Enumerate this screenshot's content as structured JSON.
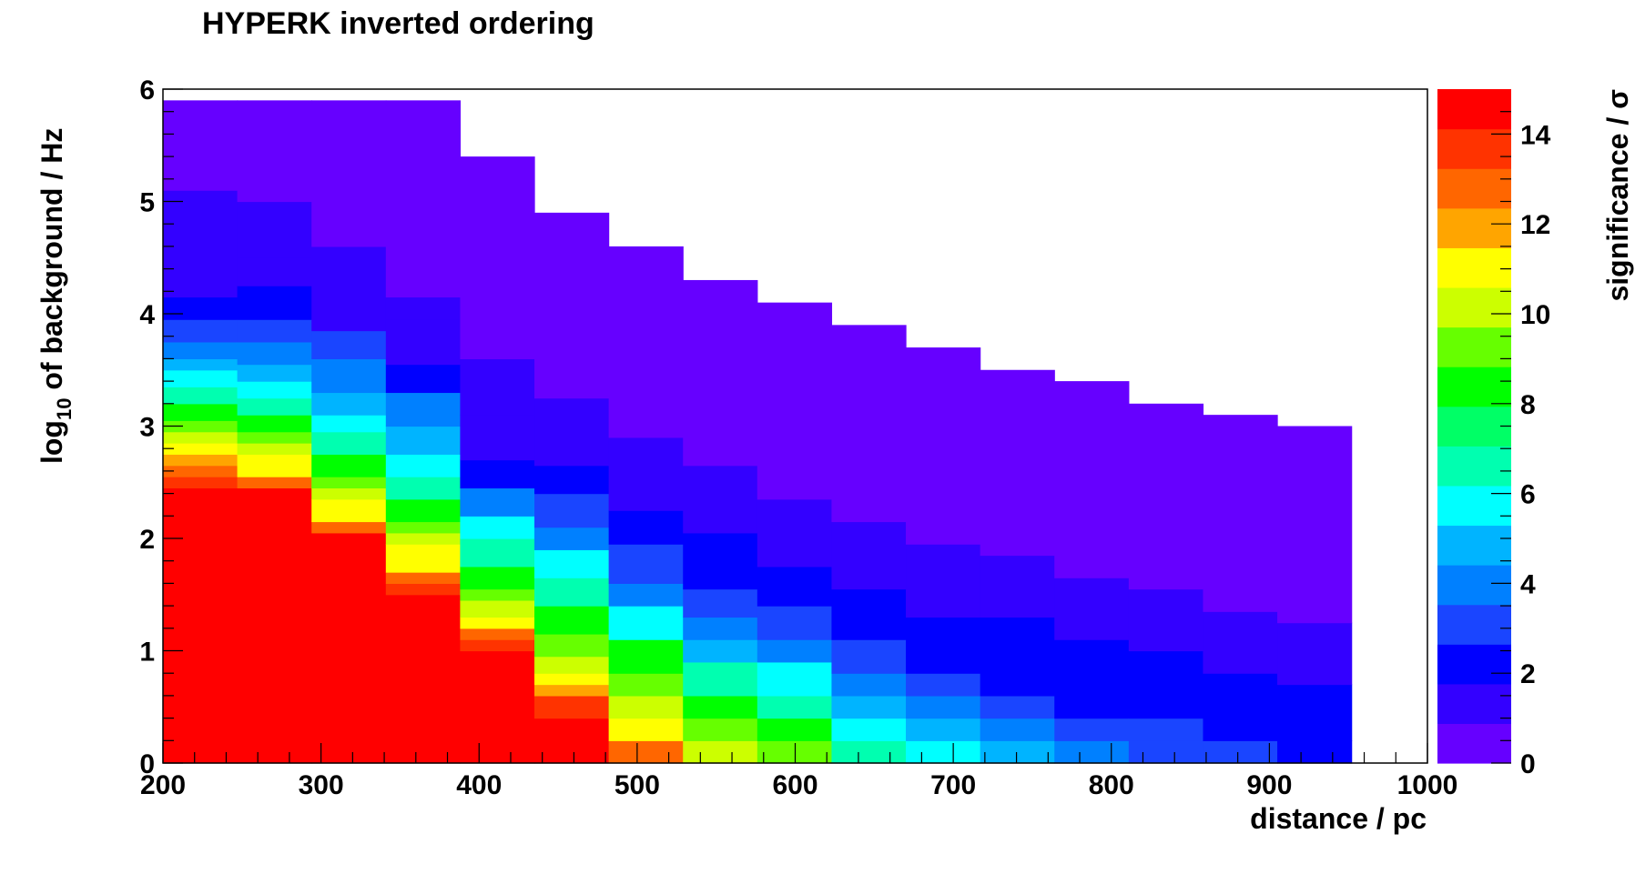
{
  "chart_data": {
    "type": "heatmap",
    "title": "HYPERK inverted ordering",
    "xlabel": "distance / pc",
    "ylabel_main": "log",
    "ylabel_sub": "10",
    "ylabel_rest": " of background / Hz",
    "zlabel": "significance / σ",
    "xlim": [
      200,
      1000
    ],
    "ylim": [
      0,
      6
    ],
    "zlim": [
      0,
      15
    ],
    "x_ticks": [
      "200",
      "300",
      "400",
      "500",
      "600",
      "700",
      "800",
      "900",
      "1000"
    ],
    "y_ticks": [
      "0",
      "1",
      "2",
      "3",
      "4",
      "5",
      "6"
    ],
    "z_ticks": [
      "0",
      "2",
      "4",
      "6",
      "8",
      "10",
      "12",
      "14"
    ],
    "z_tick_values": [
      0,
      2,
      4,
      6,
      8,
      10,
      12,
      14
    ],
    "grid": false,
    "log_scale_y": true,
    "x_bin_edges": [
      200,
      247,
      294,
      341,
      388,
      435,
      482,
      529,
      576,
      623,
      670,
      717,
      764,
      811,
      858,
      905,
      952
    ],
    "y_step": 0.2,
    "colors": [
      "#6600ff",
      "#3300ff",
      "#0000ff",
      "#1a45ff",
      "#0080ff",
      "#00b4ff",
      "#00ffff",
      "#00ffb0",
      "#00ff66",
      "#00ff00",
      "#66ff00",
      "#ccff00",
      "#ffff00",
      "#ffa500",
      "#ff6600",
      "#ff3300",
      "#ff0000"
    ],
    "columns": [
      {
        "top": 5.9,
        "red": 2.6,
        "levels": [
          [
            2.45,
            2.55,
            14
          ],
          [
            2.55,
            2.65,
            13
          ],
          [
            2.65,
            2.75,
            12
          ],
          [
            2.75,
            2.85,
            11
          ],
          [
            2.85,
            2.95,
            10
          ],
          [
            2.95,
            3.05,
            9
          ],
          [
            3.05,
            3.2,
            8
          ],
          [
            3.2,
            3.35,
            7
          ],
          [
            3.35,
            3.5,
            6
          ],
          [
            3.5,
            3.6,
            5
          ],
          [
            3.6,
            3.75,
            4
          ],
          [
            3.75,
            3.95,
            3
          ],
          [
            3.95,
            4.15,
            2.5
          ],
          [
            4.15,
            4.55,
            1.5
          ],
          [
            4.55,
            5.1,
            1
          ],
          [
            5.1,
            5.9,
            0.3
          ]
        ]
      },
      {
        "top": 5.9,
        "red": 2.45,
        "levels": [
          [
            2.45,
            2.55,
            13
          ],
          [
            2.55,
            2.75,
            11
          ],
          [
            2.75,
            2.85,
            10
          ],
          [
            2.85,
            2.95,
            9
          ],
          [
            2.95,
            3.1,
            8
          ],
          [
            3.1,
            3.25,
            7
          ],
          [
            3.25,
            3.4,
            6
          ],
          [
            3.4,
            3.55,
            5
          ],
          [
            3.55,
            3.75,
            4
          ],
          [
            3.75,
            3.95,
            3
          ],
          [
            3.95,
            4.25,
            2.5
          ],
          [
            4.25,
            4.5,
            1.5
          ],
          [
            4.5,
            5.0,
            1
          ],
          [
            5.0,
            5.9,
            0.3
          ]
        ]
      },
      {
        "top": 5.9,
        "red": 2.05,
        "levels": [
          [
            2.05,
            2.15,
            13
          ],
          [
            2.15,
            2.35,
            11
          ],
          [
            2.35,
            2.45,
            10
          ],
          [
            2.45,
            2.55,
            9
          ],
          [
            2.55,
            2.75,
            8
          ],
          [
            2.75,
            2.95,
            7
          ],
          [
            2.95,
            3.1,
            6
          ],
          [
            3.1,
            3.3,
            5
          ],
          [
            3.3,
            3.6,
            4
          ],
          [
            3.6,
            3.85,
            3
          ],
          [
            3.85,
            4.25,
            1.5
          ],
          [
            4.25,
            4.6,
            1
          ],
          [
            4.6,
            5.9,
            0.3
          ]
        ]
      },
      {
        "top": 5.9,
        "red": 1.5,
        "levels": [
          [
            1.5,
            1.6,
            14
          ],
          [
            1.6,
            1.7,
            13
          ],
          [
            1.7,
            1.95,
            11
          ],
          [
            1.95,
            2.05,
            10
          ],
          [
            2.05,
            2.15,
            9
          ],
          [
            2.15,
            2.35,
            8
          ],
          [
            2.35,
            2.55,
            7
          ],
          [
            2.55,
            2.75,
            6
          ],
          [
            2.75,
            3.0,
            5
          ],
          [
            3.0,
            3.3,
            4
          ],
          [
            3.3,
            3.55,
            2.5
          ],
          [
            3.55,
            3.95,
            1.5
          ],
          [
            3.95,
            4.15,
            1
          ],
          [
            4.15,
            5.9,
            0.3
          ]
        ]
      },
      {
        "top": 5.4,
        "red": 1.0,
        "levels": [
          [
            1.0,
            1.1,
            14
          ],
          [
            1.1,
            1.2,
            13
          ],
          [
            1.2,
            1.3,
            11
          ],
          [
            1.3,
            1.45,
            10
          ],
          [
            1.45,
            1.55,
            9
          ],
          [
            1.55,
            1.75,
            8
          ],
          [
            1.75,
            2.0,
            7
          ],
          [
            2.0,
            2.2,
            6
          ],
          [
            2.2,
            2.45,
            4
          ],
          [
            2.45,
            2.7,
            2.5
          ],
          [
            2.7,
            3.1,
            1.5
          ],
          [
            3.1,
            3.6,
            1
          ],
          [
            3.6,
            5.4,
            0.3
          ]
        ]
      },
      {
        "top": 4.9,
        "red": 0.4,
        "levels": [
          [
            0.4,
            0.6,
            13.5
          ],
          [
            0.6,
            0.7,
            12
          ],
          [
            0.7,
            0.8,
            11
          ],
          [
            0.8,
            0.95,
            10
          ],
          [
            0.95,
            1.15,
            9
          ],
          [
            1.15,
            1.4,
            8
          ],
          [
            1.4,
            1.65,
            7
          ],
          [
            1.65,
            1.9,
            6
          ],
          [
            1.9,
            2.1,
            4
          ],
          [
            2.1,
            2.4,
            3
          ],
          [
            2.4,
            2.65,
            2
          ],
          [
            2.65,
            3.25,
            1
          ],
          [
            3.25,
            4.9,
            0.3
          ]
        ]
      },
      {
        "top": 4.6,
        "red": 0.0,
        "levels": [
          [
            0.0,
            0.2,
            12.5
          ],
          [
            0.2,
            0.4,
            11
          ],
          [
            0.4,
            0.6,
            10
          ],
          [
            0.6,
            0.8,
            9
          ],
          [
            0.8,
            1.1,
            8
          ],
          [
            1.1,
            1.4,
            6
          ],
          [
            1.4,
            1.6,
            4
          ],
          [
            1.6,
            1.95,
            3
          ],
          [
            1.95,
            2.25,
            2
          ],
          [
            2.25,
            2.9,
            1
          ],
          [
            2.9,
            4.6,
            0.3
          ]
        ]
      },
      {
        "top": 4.3,
        "red": 0.0,
        "levels": [
          [
            0.0,
            0.2,
            10
          ],
          [
            0.2,
            0.4,
            9
          ],
          [
            0.4,
            0.6,
            8
          ],
          [
            0.6,
            0.9,
            7
          ],
          [
            0.9,
            1.1,
            5
          ],
          [
            1.1,
            1.3,
            4
          ],
          [
            1.3,
            1.55,
            3
          ],
          [
            1.55,
            2.05,
            2
          ],
          [
            2.05,
            2.65,
            1
          ],
          [
            2.65,
            4.3,
            0.3
          ]
        ]
      },
      {
        "top": 4.1,
        "red": 0.0,
        "levels": [
          [
            0.0,
            0.2,
            9
          ],
          [
            0.2,
            0.4,
            8
          ],
          [
            0.4,
            0.6,
            7
          ],
          [
            0.6,
            0.9,
            6
          ],
          [
            0.9,
            1.1,
            4
          ],
          [
            1.1,
            1.4,
            3
          ],
          [
            1.4,
            1.75,
            2
          ],
          [
            1.75,
            2.35,
            1
          ],
          [
            2.35,
            4.1,
            0.3
          ]
        ]
      },
      {
        "top": 3.9,
        "red": 0.0,
        "levels": [
          [
            0.0,
            0.2,
            7
          ],
          [
            0.2,
            0.4,
            6
          ],
          [
            0.4,
            0.6,
            5
          ],
          [
            0.6,
            0.8,
            4
          ],
          [
            0.8,
            1.1,
            3
          ],
          [
            1.1,
            1.55,
            2
          ],
          [
            1.55,
            2.15,
            1
          ],
          [
            2.15,
            3.9,
            0.3
          ]
        ]
      },
      {
        "top": 3.7,
        "red": 0.0,
        "levels": [
          [
            0.0,
            0.2,
            6
          ],
          [
            0.2,
            0.4,
            5
          ],
          [
            0.4,
            0.6,
            4
          ],
          [
            0.6,
            0.8,
            3
          ],
          [
            0.8,
            1.3,
            2
          ],
          [
            1.3,
            1.95,
            1
          ],
          [
            1.95,
            3.7,
            0.3
          ]
        ]
      },
      {
        "top": 3.5,
        "red": 0.0,
        "levels": [
          [
            0.0,
            0.2,
            5
          ],
          [
            0.2,
            0.4,
            4
          ],
          [
            0.4,
            0.6,
            3
          ],
          [
            0.6,
            1.3,
            2
          ],
          [
            1.3,
            1.85,
            1
          ],
          [
            1.85,
            3.5,
            0.3
          ]
        ]
      },
      {
        "top": 3.4,
        "red": 0.0,
        "levels": [
          [
            0.0,
            0.2,
            4
          ],
          [
            0.2,
            0.4,
            3
          ],
          [
            0.4,
            0.7,
            2.5
          ],
          [
            0.7,
            1.1,
            2
          ],
          [
            1.1,
            1.65,
            1
          ],
          [
            1.65,
            3.4,
            0.3
          ]
        ]
      },
      {
        "top": 3.2,
        "red": 0.0,
        "levels": [
          [
            0.0,
            0.2,
            3.5
          ],
          [
            0.2,
            0.4,
            3
          ],
          [
            0.4,
            0.55,
            2.5
          ],
          [
            0.55,
            1.0,
            2
          ],
          [
            1.0,
            1.55,
            1
          ],
          [
            1.55,
            3.2,
            0.3
          ]
        ]
      },
      {
        "top": 3.1,
        "red": 0.0,
        "levels": [
          [
            0.0,
            0.2,
            3.5
          ],
          [
            0.2,
            0.4,
            2.5
          ],
          [
            0.4,
            0.8,
            2
          ],
          [
            0.8,
            1.35,
            1
          ],
          [
            1.35,
            3.1,
            0.3
          ]
        ]
      },
      {
        "top": 3.0,
        "red": 0.0,
        "levels": [
          [
            0.0,
            0.2,
            2.5
          ],
          [
            0.2,
            0.7,
            2
          ],
          [
            0.7,
            1.25,
            1
          ],
          [
            1.25,
            3.0,
            0.3
          ]
        ]
      }
    ]
  }
}
